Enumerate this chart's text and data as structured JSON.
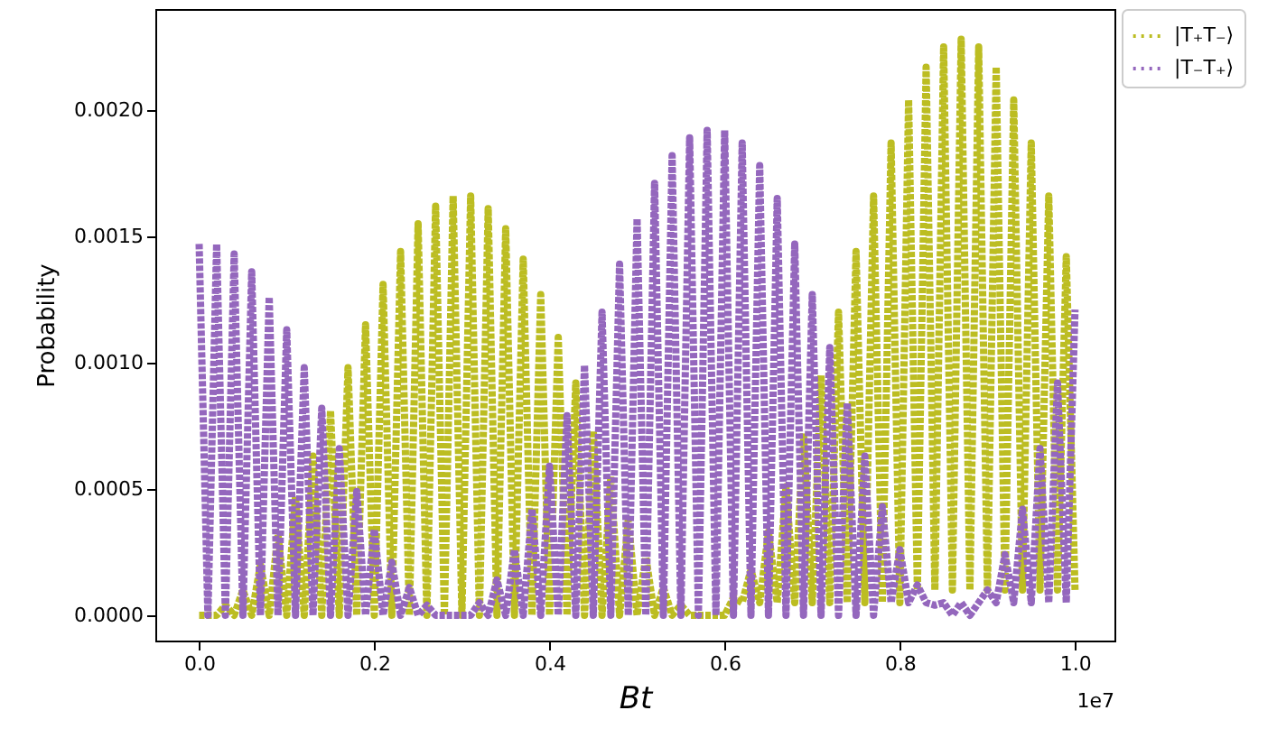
{
  "chart_data": {
    "type": "line",
    "xlabel": "Bt",
    "ylabel": "Probability",
    "x": [
      0,
      0.01,
      0.02,
      0.03,
      0.04,
      0.05,
      0.06,
      0.07,
      0.08,
      0.09,
      0.1,
      0.11,
      0.12,
      0.13,
      0.14,
      0.15,
      0.16,
      0.17,
      0.18,
      0.19,
      0.2,
      0.21,
      0.22,
      0.23,
      0.24,
      0.25,
      0.26,
      0.27,
      0.28,
      0.29,
      0.3,
      0.31,
      0.32,
      0.33,
      0.34,
      0.35,
      0.36,
      0.37,
      0.38,
      0.39,
      0.4,
      0.41,
      0.42,
      0.43,
      0.44,
      0.45,
      0.46,
      0.47,
      0.48,
      0.49,
      0.5,
      0.51,
      0.52,
      0.53,
      0.54,
      0.55,
      0.56,
      0.57,
      0.58,
      0.59,
      0.6,
      0.61,
      0.62,
      0.63,
      0.64,
      0.65,
      0.66,
      0.67,
      0.68,
      0.69,
      0.7,
      0.71,
      0.72,
      0.73,
      0.74,
      0.75,
      0.76,
      0.77,
      0.78,
      0.79,
      0.8,
      0.81,
      0.82,
      0.83,
      0.84,
      0.85,
      0.86,
      0.87,
      0.88,
      0.89,
      0.9,
      0.91,
      0.92,
      0.93,
      0.94,
      0.95,
      0.96,
      0.97,
      0.98,
      0.99,
      1.0
    ],
    "series": [
      {
        "name": "|T₊T₋⟩",
        "color": "#bcbd22",
        "values": [
          0,
          0,
          0,
          4e-05,
          0,
          0.0001,
          0,
          0.0002,
          0,
          0.00032,
          0,
          0.00047,
          0,
          0.00063,
          0,
          0.00081,
          0,
          0.00098,
          0,
          0.00115,
          0,
          0.00131,
          0,
          0.00144,
          0,
          0.00155,
          0,
          0.00162,
          0,
          0.00166,
          0,
          0.00166,
          0,
          0.00161,
          0,
          0.00153,
          0,
          0.00141,
          0,
          0.00127,
          0,
          0.0011,
          0,
          0.00092,
          0,
          0.00073,
          0,
          0.00055,
          0,
          0.00038,
          0,
          0.00023,
          0,
          0.00011,
          0,
          4e-05,
          0,
          0,
          0,
          0,
          0,
          7e-05,
          5e-05,
          0.00018,
          5e-05,
          0.00033,
          5e-05,
          0.00051,
          5e-05,
          0.00072,
          5e-05,
          0.00095,
          5e-05,
          0.0012,
          5e-05,
          0.00144,
          5e-05,
          0.00166,
          5e-05,
          0.00187,
          5e-05,
          0.00204,
          0.0001,
          0.00217,
          0.0001,
          0.00225,
          0.0001,
          0.00228,
          0.0001,
          0.00225,
          0.0001,
          0.00217,
          0.0001,
          0.00204,
          0.0001,
          0.00187,
          0.0001,
          0.00166,
          0.0001,
          0.00142,
          0.0001
        ]
      },
      {
        "name": "|T₋T₊⟩",
        "color": "#9467bd",
        "values": [
          0.00147,
          0,
          0.00147,
          0,
          0.00143,
          0,
          0.00136,
          0,
          0.00126,
          0,
          0.00113,
          0,
          0.00098,
          0,
          0.00082,
          0,
          0.00066,
          0,
          0.00049,
          0,
          0.00034,
          0,
          0.00021,
          0,
          0.00011,
          0,
          4e-05,
          0,
          0,
          0,
          0,
          0,
          5e-05,
          0,
          0.00014,
          0,
          0.00026,
          0,
          0.00042,
          0,
          0.00059,
          0,
          0.00079,
          0,
          0.00099,
          0,
          0.0012,
          0,
          0.00139,
          0,
          0.00157,
          0,
          0.00171,
          0,
          0.00182,
          0,
          0.00189,
          0,
          0.00192,
          0,
          0.00192,
          0,
          0.00187,
          0,
          0.00178,
          0,
          0.00165,
          0,
          0.00147,
          0,
          0.00127,
          0,
          0.00106,
          0,
          0.00084,
          0,
          0.00063,
          0,
          0.00043,
          5e-05,
          0.00026,
          5e-05,
          0.00012,
          5e-05,
          4e-05,
          5e-05,
          0,
          5e-05,
          0,
          5e-05,
          0.0001,
          5e-05,
          0.00024,
          5e-05,
          0.00042,
          5e-05,
          0.00066,
          5e-05,
          0.00092,
          5e-05,
          0.00121
        ]
      }
    ],
    "xlim": [
      -0.05,
      1.045
    ],
    "xticks": [
      {
        "value": 0,
        "label": "0.0"
      },
      0.2,
      0.4,
      0.6,
      0.8,
      {
        "value": 1,
        "label": "1.0"
      }
    ],
    "ylim": [
      -0.0001,
      0.0024
    ],
    "yticks": [
      {
        "value": 0,
        "label": "0.0000"
      },
      {
        "value": 0.0005,
        "label": "0.0005"
      },
      {
        "value": 0.001,
        "label": "0.0010"
      },
      {
        "value": 0.0015,
        "label": "0.0015"
      },
      {
        "value": 0.002,
        "label": "0.0020"
      }
    ],
    "annotations": [
      "1e7"
    ],
    "legend": "top right",
    "line_style": "dotted",
    "marker": "none"
  }
}
